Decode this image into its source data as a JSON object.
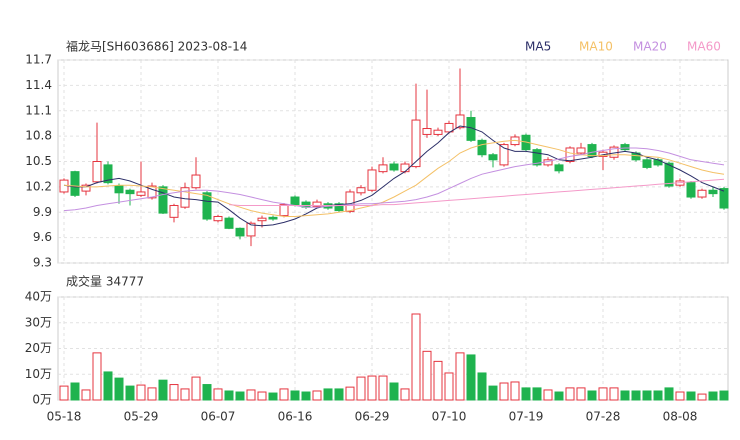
{
  "chart_data": [
    {
      "type": "candlestick",
      "title": "福龙马[SH603686] 2023-08-14",
      "categories": [
        "05-18",
        null,
        null,
        null,
        null,
        null,
        null,
        "05-29",
        null,
        null,
        null,
        null,
        null,
        null,
        "06-07",
        null,
        null,
        null,
        null,
        null,
        null,
        "06-16",
        null,
        null,
        null,
        null,
        null,
        null,
        "06-29",
        null,
        null,
        null,
        null,
        null,
        null,
        "07-10",
        null,
        null,
        null,
        null,
        null,
        null,
        "07-19",
        null,
        null,
        null,
        null,
        null,
        null,
        "07-28",
        null,
        null,
        null,
        null,
        null,
        null,
        "08-08",
        null,
        null,
        null,
        null
      ],
      "open": [
        10.14,
        10.38,
        10.15,
        10.26,
        10.46,
        10.21,
        10.16,
        10.1,
        10.07,
        10.2,
        9.84,
        9.96,
        10.19,
        10.13,
        9.8,
        9.83,
        9.71,
        9.62,
        9.8,
        9.84,
        9.86,
        10.08,
        10.02,
        9.97,
        10.0,
        10.0,
        9.91,
        10.13,
        10.16,
        10.38,
        10.47,
        10.38,
        10.44,
        10.82,
        10.82,
        10.85,
        10.9,
        11.02,
        10.75,
        10.58,
        10.46,
        10.7,
        10.81,
        10.64,
        10.46,
        10.46,
        10.5,
        10.6,
        10.7,
        10.56,
        10.55,
        10.7,
        10.6,
        10.52,
        10.52,
        10.48,
        10.22,
        10.25,
        10.08,
        10.16,
        10.18
      ],
      "high": [
        10.3,
        10.39,
        10.24,
        10.96,
        10.5,
        10.24,
        10.18,
        10.5,
        10.25,
        10.22,
        10.0,
        10.25,
        10.55,
        10.15,
        9.87,
        9.85,
        9.72,
        9.79,
        9.86,
        9.86,
        10.01,
        10.1,
        10.04,
        10.05,
        10.02,
        10.02,
        10.17,
        10.22,
        10.44,
        10.55,
        10.5,
        10.5,
        11.42,
        11.35,
        10.9,
        10.98,
        11.6,
        11.1,
        10.77,
        10.6,
        10.72,
        10.82,
        10.83,
        10.66,
        10.55,
        10.48,
        10.68,
        10.72,
        10.72,
        10.64,
        10.69,
        10.72,
        10.62,
        10.54,
        10.54,
        10.5,
        10.3,
        10.27,
        10.18,
        10.2,
        10.2
      ],
      "low": [
        10.12,
        10.08,
        10.1,
        10.24,
        10.23,
        10.0,
        9.98,
        10.08,
        10.05,
        9.88,
        9.78,
        9.94,
        10.17,
        9.8,
        9.78,
        9.7,
        9.58,
        9.5,
        9.72,
        9.8,
        9.84,
        9.97,
        9.94,
        9.95,
        9.93,
        9.9,
        9.89,
        10.1,
        10.14,
        10.36,
        10.38,
        10.36,
        10.42,
        10.78,
        10.8,
        10.83,
        10.88,
        10.73,
        10.55,
        10.43,
        10.44,
        10.68,
        10.62,
        10.44,
        10.44,
        10.36,
        10.48,
        10.58,
        10.54,
        10.4,
        10.52,
        10.62,
        10.5,
        10.41,
        10.44,
        10.19,
        10.2,
        10.06,
        10.06,
        10.08,
        9.93
      ],
      "close": [
        10.28,
        10.1,
        10.22,
        10.5,
        10.25,
        10.13,
        10.12,
        10.14,
        10.21,
        9.89,
        9.98,
        10.19,
        10.34,
        9.82,
        9.85,
        9.71,
        9.62,
        9.77,
        9.83,
        9.82,
        9.99,
        9.99,
        9.96,
        10.02,
        9.95,
        9.92,
        10.14,
        10.19,
        10.4,
        10.46,
        10.4,
        10.47,
        10.99,
        10.89,
        10.87,
        10.95,
        11.05,
        10.75,
        10.58,
        10.52,
        10.7,
        10.79,
        10.64,
        10.46,
        10.52,
        10.39,
        10.66,
        10.66,
        10.56,
        10.61,
        10.67,
        10.64,
        10.52,
        10.43,
        10.46,
        10.21,
        10.27,
        10.08,
        10.16,
        10.12,
        9.95
      ],
      "up_color": "#e5343f",
      "down_color": "#1fb34f",
      "series": [
        {
          "name": "MA5",
          "color": "#2c2f68",
          "values": [
            10.22,
            10.2,
            10.2,
            10.25,
            10.28,
            10.3,
            10.27,
            10.22,
            10.17,
            10.13,
            10.08,
            10.06,
            10.05,
            10.03,
            10.02,
            9.93,
            9.83,
            9.75,
            9.74,
            9.75,
            9.78,
            9.82,
            9.88,
            9.95,
            9.98,
            9.99,
            10.0,
            10.04,
            10.1,
            10.2,
            10.3,
            10.38,
            10.5,
            10.62,
            10.72,
            10.84,
            10.92,
            10.9,
            10.85,
            10.75,
            10.66,
            10.62,
            10.62,
            10.6,
            10.58,
            10.52,
            10.51,
            10.53,
            10.55,
            10.58,
            10.6,
            10.62,
            10.6,
            10.55,
            10.52,
            10.46,
            10.4,
            10.33,
            10.25,
            10.2,
            10.15
          ]
        },
        {
          "name": "MA10",
          "color": "#f4c167",
          "values": [
            10.22,
            10.21,
            10.2,
            10.2,
            10.21,
            10.22,
            10.22,
            10.21,
            10.2,
            10.18,
            10.16,
            10.14,
            10.12,
            10.1,
            10.05,
            10.0,
            9.96,
            9.92,
            9.89,
            9.87,
            9.85,
            9.85,
            9.86,
            9.87,
            9.88,
            9.9,
            9.92,
            9.95,
            9.98,
            10.02,
            10.08,
            10.15,
            10.22,
            10.32,
            10.42,
            10.5,
            10.6,
            10.66,
            10.7,
            10.72,
            10.74,
            10.75,
            10.73,
            10.7,
            10.67,
            10.64,
            10.6,
            10.58,
            10.57,
            10.57,
            10.58,
            10.58,
            10.57,
            10.56,
            10.55,
            10.52,
            10.48,
            10.44,
            10.4,
            10.37,
            10.35
          ]
        },
        {
          "name": "MA20",
          "color": "#c490e0",
          "values": [
            9.92,
            9.93,
            9.95,
            9.98,
            10.0,
            10.02,
            10.04,
            10.06,
            10.08,
            10.11,
            10.13,
            10.15,
            10.16,
            10.16,
            10.15,
            10.13,
            10.11,
            10.08,
            10.05,
            10.02,
            10.0,
            9.98,
            9.96,
            9.96,
            9.97,
            9.98,
            9.99,
            10.0,
            10.0,
            10.01,
            10.02,
            10.03,
            10.05,
            10.08,
            10.12,
            10.18,
            10.24,
            10.3,
            10.35,
            10.38,
            10.41,
            10.44,
            10.46,
            10.48,
            10.5,
            10.53,
            10.56,
            10.58,
            10.61,
            10.63,
            10.65,
            10.66,
            10.66,
            10.65,
            10.63,
            10.6,
            10.56,
            10.52,
            10.5,
            10.48,
            10.46
          ]
        },
        {
          "name": "MA60",
          "color": "#f49ac9",
          "values": [
            null,
            null,
            null,
            null,
            null,
            null,
            null,
            null,
            null,
            null,
            null,
            null,
            null,
            null,
            null,
            9.99,
            9.98,
            9.98,
            9.98,
            9.98,
            9.98,
            9.98,
            9.98,
            9.98,
            9.98,
            9.98,
            9.98,
            9.98,
            9.98,
            9.99,
            9.99,
            10.0,
            10.01,
            10.02,
            10.03,
            10.04,
            10.05,
            10.06,
            10.07,
            10.08,
            10.09,
            10.1,
            10.11,
            10.12,
            10.13,
            10.14,
            10.15,
            10.16,
            10.17,
            10.18,
            10.19,
            10.2,
            10.21,
            10.22,
            10.23,
            10.24,
            10.25,
            10.26,
            10.27,
            10.28,
            10.29
          ]
        }
      ],
      "ylim": [
        9.3,
        11.7
      ],
      "yticks": [
        9.3,
        9.6,
        9.9,
        10.2,
        10.5,
        10.8,
        11.1,
        11.4,
        11.7
      ],
      "grid": true
    },
    {
      "type": "bar",
      "title": "成交量 34777",
      "values": [
        5.4,
        6.6,
        3.9,
        18.3,
        10.9,
        8.5,
        5.4,
        5.8,
        4.7,
        7.7,
        6.0,
        4.3,
        8.9,
        6.0,
        4.3,
        3.5,
        3.1,
        3.9,
        3.1,
        2.7,
        4.3,
        3.5,
        3.1,
        3.5,
        4.3,
        4.3,
        5.0,
        8.9,
        9.3,
        9.3,
        6.6,
        4.3,
        33.4,
        18.9,
        15.0,
        10.5,
        18.3,
        17.5,
        10.5,
        5.4,
        6.6,
        7.0,
        4.7,
        4.7,
        3.9,
        3.1,
        4.7,
        4.7,
        3.5,
        4.7,
        4.7,
        3.5,
        3.5,
        3.5,
        3.5,
        4.7,
        3.1,
        3.1,
        2.3,
        3.1,
        3.48
      ],
      "ylim": [
        0,
        40
      ],
      "yticks": [
        {
          "value": 0,
          "label": "0万"
        },
        {
          "value": 10,
          "label": "10万"
        },
        {
          "value": 20,
          "label": "20万"
        },
        {
          "value": 30,
          "label": "30万"
        },
        {
          "value": 40,
          "label": "40万"
        }
      ],
      "grid": true
    }
  ]
}
